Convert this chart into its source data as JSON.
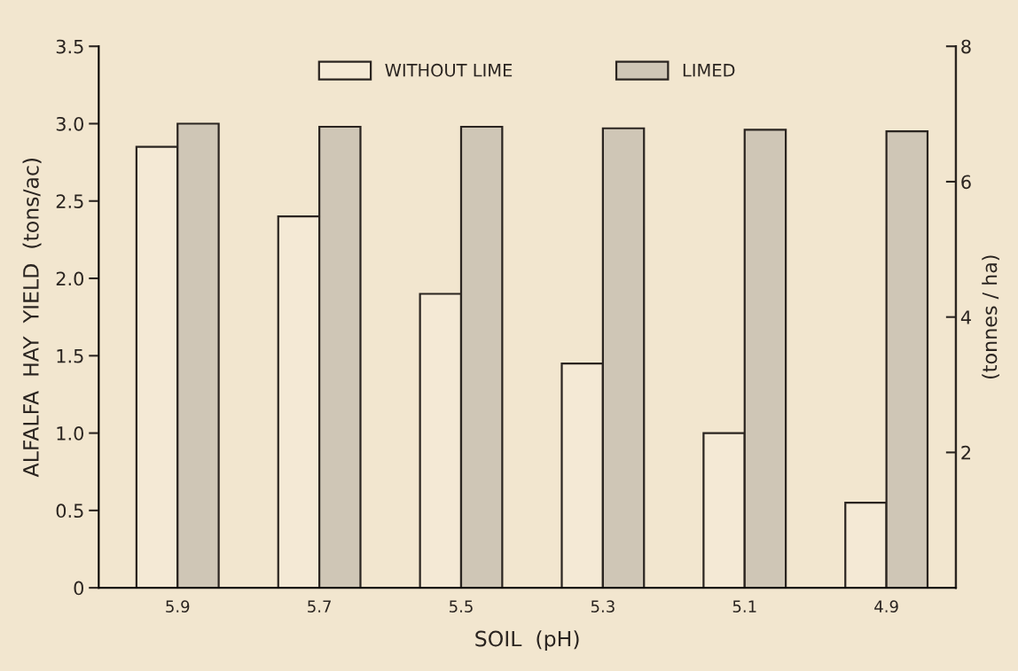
{
  "chart_data": {
    "type": "bar",
    "xlabel": "SOIL  (pH)",
    "ylabel": "ALFALFA  HAY  YIELD  (tons/ac)",
    "y2label": "(tonnes / ha)",
    "categories": [
      "5.9",
      "5.7",
      "5.5",
      "5.3",
      "5.1",
      "4.9"
    ],
    "series": [
      {
        "name": "WITHOUT LIME",
        "color": "#f4e9d5",
        "values": [
          2.85,
          2.4,
          1.9,
          1.45,
          1.0,
          0.55
        ]
      },
      {
        "name": "LIMED",
        "color": "#cfc6b6",
        "values": [
          3.0,
          2.98,
          2.98,
          2.97,
          2.96,
          2.95
        ]
      }
    ],
    "ylim": [
      0,
      3.5
    ],
    "yticks": [
      0,
      0.5,
      {
        "value": 1,
        "label": "1.0"
      },
      1.5,
      {
        "value": 2,
        "label": "2.0"
      },
      2.5,
      {
        "value": 3,
        "label": "3.0"
      },
      3.5
    ],
    "y2lim": [
      0,
      8
    ],
    "y2ticks": [
      2,
      4,
      6,
      8
    ],
    "grid": false,
    "legend": "top"
  }
}
